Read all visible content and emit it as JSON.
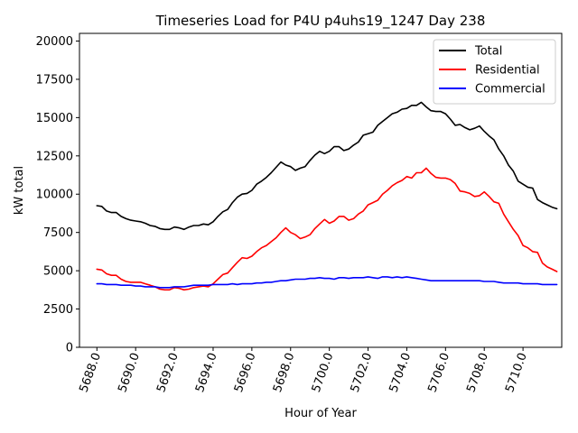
{
  "chart_data": {
    "type": "line",
    "title": "Timeseries Load for P4U p4uhs19_1247  Day 238",
    "xlabel": "Hour of Year",
    "ylabel": "kW total",
    "xlim": [
      5687.1,
      5712.0
    ],
    "ylim": [
      0,
      20500
    ],
    "xticks": [
      5688,
      5690,
      5692,
      5694,
      5696,
      5698,
      5700,
      5702,
      5704,
      5706,
      5708,
      5710
    ],
    "xtick_labels": [
      "5688.0",
      "5690.0",
      "5692.0",
      "5694.0",
      "5696.0",
      "5698.0",
      "5700.0",
      "5702.0",
      "5704.0",
      "5706.0",
      "5708.0",
      "5710.0"
    ],
    "yticks": [
      0,
      2500,
      5000,
      7500,
      10000,
      12500,
      15000,
      17500,
      20000
    ],
    "ytick_labels": [
      "0",
      "2500",
      "5000",
      "7500",
      "10000",
      "12500",
      "15000",
      "17500",
      "20000"
    ],
    "legend_position": "top-right",
    "series": [
      {
        "name": "Total",
        "color": "#000000",
        "x": [
          5688.0,
          5688.25,
          5688.5,
          5688.75,
          5689.0,
          5689.25,
          5689.5,
          5689.75,
          5690.0,
          5690.25,
          5690.5,
          5690.75,
          5691.0,
          5691.25,
          5691.5,
          5691.75,
          5692.0,
          5692.25,
          5692.5,
          5692.75,
          5693.0,
          5693.25,
          5693.5,
          5693.75,
          5694.0,
          5694.25,
          5694.5,
          5694.75,
          5695.0,
          5695.25,
          5695.5,
          5695.75,
          5696.0,
          5696.25,
          5696.5,
          5696.75,
          5697.0,
          5697.25,
          5697.5,
          5697.75,
          5698.0,
          5698.25,
          5698.5,
          5698.75,
          5699.0,
          5699.25,
          5699.5,
          5699.75,
          5700.0,
          5700.25,
          5700.5,
          5700.75,
          5701.0,
          5701.25,
          5701.5,
          5701.75,
          5702.0,
          5702.25,
          5702.5,
          5702.75,
          5703.0,
          5703.25,
          5703.5,
          5703.75,
          5704.0,
          5704.25,
          5704.5,
          5704.75,
          5705.0,
          5705.25,
          5705.5,
          5705.75,
          5706.0,
          5706.25,
          5706.5,
          5706.75,
          5707.0,
          5707.25,
          5707.5,
          5707.75,
          5708.0,
          5708.25,
          5708.5,
          5708.75,
          5709.0,
          5709.25,
          5709.5,
          5709.75,
          5710.0,
          5710.25,
          5710.5,
          5710.75,
          5711.0,
          5711.25,
          5711.5,
          5711.75
        ],
        "values": [
          9250,
          9200,
          8900,
          8800,
          8800,
          8550,
          8400,
          8300,
          8250,
          8200,
          8100,
          7950,
          7900,
          7750,
          7700,
          7700,
          7850,
          7800,
          7700,
          7850,
          7950,
          7950,
          8050,
          8000,
          8200,
          8550,
          8850,
          9000,
          9450,
          9800,
          10000,
          10050,
          10250,
          10650,
          10850,
          11100,
          11400,
          11750,
          12100,
          11900,
          11800,
          11550,
          11700,
          11800,
          12200,
          12550,
          12800,
          12650,
          12800,
          13100,
          13100,
          12850,
          12950,
          13200,
          13400,
          13850,
          13950,
          14050,
          14500,
          14750,
          15000,
          15250,
          15350,
          15550,
          15600,
          15800,
          15800,
          16000,
          15700,
          15450,
          15400,
          15400,
          15250,
          14900,
          14500,
          14550,
          14350,
          14200,
          14300,
          14450,
          14100,
          13800,
          13550,
          12950,
          12500,
          11900,
          11500,
          10850,
          10650,
          10450,
          10400,
          9650,
          9450,
          9300,
          9150,
          9050
        ]
      },
      {
        "name": "Residential",
        "color": "#ff0000",
        "x": [
          5688.0,
          5688.25,
          5688.5,
          5688.75,
          5689.0,
          5689.25,
          5689.5,
          5689.75,
          5690.0,
          5690.25,
          5690.5,
          5690.75,
          5691.0,
          5691.25,
          5691.5,
          5691.75,
          5692.0,
          5692.25,
          5692.5,
          5692.75,
          5693.0,
          5693.25,
          5693.5,
          5693.75,
          5694.0,
          5694.25,
          5694.5,
          5694.75,
          5695.0,
          5695.25,
          5695.5,
          5695.75,
          5696.0,
          5696.25,
          5696.5,
          5696.75,
          5697.0,
          5697.25,
          5697.5,
          5697.75,
          5698.0,
          5698.25,
          5698.5,
          5698.75,
          5699.0,
          5699.25,
          5699.5,
          5699.75,
          5700.0,
          5700.25,
          5700.5,
          5700.75,
          5701.0,
          5701.25,
          5701.5,
          5701.75,
          5702.0,
          5702.25,
          5702.5,
          5702.75,
          5703.0,
          5703.25,
          5703.5,
          5703.75,
          5704.0,
          5704.25,
          5704.5,
          5704.75,
          5705.0,
          5705.25,
          5705.5,
          5705.75,
          5706.0,
          5706.25,
          5706.5,
          5706.75,
          5707.0,
          5707.25,
          5707.5,
          5707.75,
          5708.0,
          5708.25,
          5708.5,
          5708.75,
          5709.0,
          5709.25,
          5709.5,
          5709.75,
          5710.0,
          5710.25,
          5710.5,
          5710.75,
          5711.0,
          5711.25,
          5711.5,
          5711.75
        ],
        "values": [
          5100,
          5050,
          4800,
          4700,
          4700,
          4450,
          4300,
          4250,
          4250,
          4250,
          4150,
          4050,
          3950,
          3800,
          3750,
          3750,
          3900,
          3850,
          3750,
          3800,
          3900,
          3950,
          4000,
          3950,
          4150,
          4450,
          4750,
          4850,
          5200,
          5550,
          5850,
          5800,
          5950,
          6250,
          6500,
          6650,
          6900,
          7150,
          7500,
          7800,
          7500,
          7350,
          7100,
          7200,
          7350,
          7750,
          8050,
          8350,
          8100,
          8250,
          8550,
          8550,
          8300,
          8400,
          8700,
          8900,
          9300,
          9450,
          9600,
          10000,
          10250,
          10550,
          10750,
          10900,
          11150,
          11050,
          11400,
          11400,
          11700,
          11350,
          11100,
          11050,
          11050,
          10950,
          10700,
          10200,
          10150,
          10050,
          9850,
          9900,
          10150,
          9850,
          9500,
          9400,
          8700,
          8200,
          7700,
          7300,
          6650,
          6500,
          6250,
          6200,
          5500,
          5250,
          5100,
          4950
        ]
      },
      {
        "name": "Commercial",
        "color": "#0000ff",
        "x": [
          5688.0,
          5688.25,
          5688.5,
          5688.75,
          5689.0,
          5689.25,
          5689.5,
          5689.75,
          5690.0,
          5690.25,
          5690.5,
          5690.75,
          5691.0,
          5691.25,
          5691.5,
          5691.75,
          5692.0,
          5692.25,
          5692.5,
          5692.75,
          5693.0,
          5693.25,
          5693.5,
          5693.75,
          5694.0,
          5694.25,
          5694.5,
          5694.75,
          5695.0,
          5695.25,
          5695.5,
          5695.75,
          5696.0,
          5696.25,
          5696.5,
          5696.75,
          5697.0,
          5697.25,
          5697.5,
          5697.75,
          5698.0,
          5698.25,
          5698.5,
          5698.75,
          5699.0,
          5699.25,
          5699.5,
          5699.75,
          5700.0,
          5700.25,
          5700.5,
          5700.75,
          5701.0,
          5701.25,
          5701.5,
          5701.75,
          5702.0,
          5702.25,
          5702.5,
          5702.75,
          5703.0,
          5703.25,
          5703.5,
          5703.75,
          5704.0,
          5704.25,
          5704.5,
          5704.75,
          5705.0,
          5705.25,
          5705.5,
          5705.75,
          5706.0,
          5706.25,
          5706.5,
          5706.75,
          5707.0,
          5707.25,
          5707.5,
          5707.75,
          5708.0,
          5708.25,
          5708.5,
          5708.75,
          5709.0,
          5709.25,
          5709.5,
          5709.75,
          5710.0,
          5710.25,
          5710.5,
          5710.75,
          5711.0,
          5711.25,
          5711.5,
          5711.75
        ],
        "values": [
          4150,
          4150,
          4100,
          4100,
          4100,
          4050,
          4050,
          4050,
          4000,
          4000,
          3950,
          3950,
          3950,
          3900,
          3900,
          3900,
          3950,
          3950,
          3950,
          4000,
          4050,
          4050,
          4050,
          4050,
          4100,
          4100,
          4100,
          4100,
          4150,
          4100,
          4150,
          4150,
          4150,
          4200,
          4200,
          4250,
          4250,
          4300,
          4350,
          4350,
          4400,
          4450,
          4450,
          4450,
          4500,
          4500,
          4550,
          4500,
          4500,
          4450,
          4550,
          4550,
          4500,
          4550,
          4550,
          4550,
          4600,
          4550,
          4500,
          4600,
          4600,
          4550,
          4600,
          4550,
          4600,
          4550,
          4500,
          4450,
          4400,
          4350,
          4350,
          4350,
          4350,
          4350,
          4350,
          4350,
          4350,
          4350,
          4350,
          4350,
          4300,
          4300,
          4300,
          4250,
          4200,
          4200,
          4200,
          4200,
          4150,
          4150,
          4150,
          4150,
          4100,
          4100,
          4100,
          4100
        ]
      }
    ]
  }
}
